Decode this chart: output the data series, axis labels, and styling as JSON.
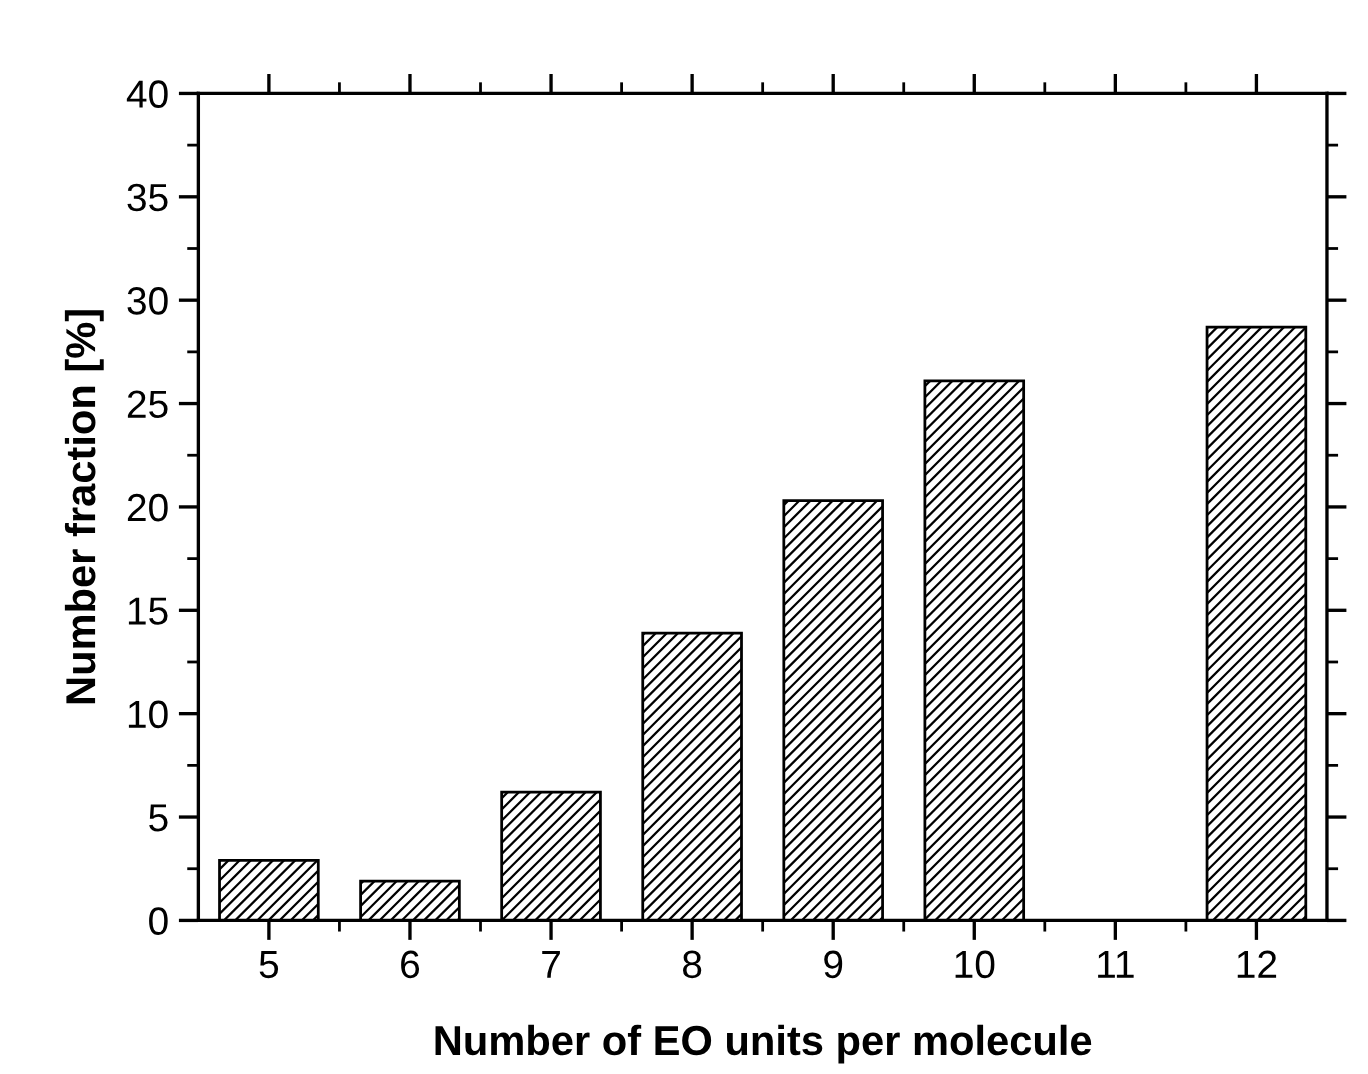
{
  "chart_data": {
    "type": "bar",
    "xlabel": "Number of EO units per molecule",
    "ylabel": "Number fraction [%]",
    "categories": [
      "5",
      "6",
      "7",
      "8",
      "9",
      "10",
      "11",
      "12"
    ],
    "values": [
      2.9,
      1.9,
      6.2,
      13.9,
      20.3,
      26.1,
      null,
      28.7
    ],
    "color": "#000000",
    "ylim": [
      0,
      40
    ],
    "yticks": [
      0,
      5,
      10,
      15,
      20,
      25,
      30,
      35,
      40
    ],
    "grid": false
  }
}
